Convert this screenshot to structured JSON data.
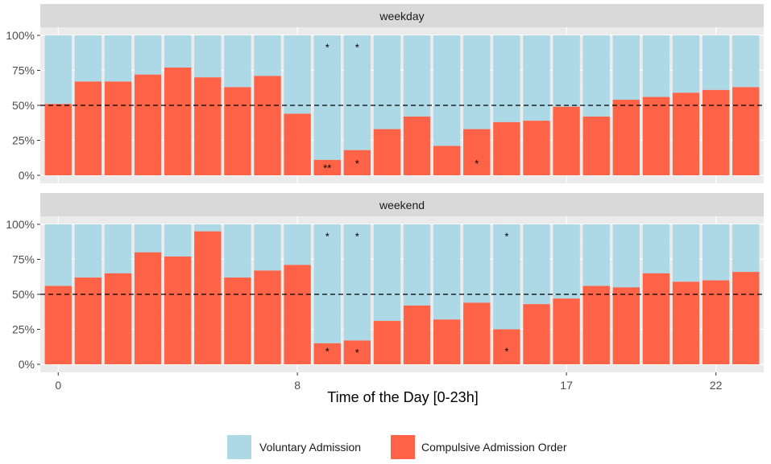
{
  "chart_data": {
    "type": "bar",
    "stacked": true,
    "xlabel": "Time of the Day [0-23h]",
    "x_ticks": [
      0,
      8,
      17,
      22
    ],
    "y_ticks": [
      "0%",
      "25%",
      "50%",
      "75%",
      "100%"
    ],
    "ylim": [
      0,
      100
    ],
    "reference_line": 50,
    "hours": [
      0,
      1,
      2,
      3,
      4,
      5,
      6,
      7,
      8,
      9,
      10,
      11,
      12,
      13,
      14,
      15,
      16,
      17,
      18,
      19,
      20,
      21,
      22,
      23
    ],
    "legend": [
      {
        "name": "Voluntary Admission",
        "color": "#ADD8E6"
      },
      {
        "name": "Compulsive Admission Order",
        "color": "#FF6347"
      }
    ],
    "panels": [
      {
        "label": "weekday",
        "compulsive": [
          51,
          67,
          67,
          72,
          77,
          70,
          63,
          71,
          44,
          11,
          18,
          33,
          42,
          21,
          33,
          38,
          39,
          49,
          42,
          54,
          56,
          59,
          61,
          63
        ],
        "markers": [
          {
            "hour": 9,
            "value": 91,
            "text": "*"
          },
          {
            "hour": 10,
            "value": 91,
            "text": "*"
          },
          {
            "hour": 9,
            "value": 5,
            "text": "**"
          },
          {
            "hour": 10,
            "value": 8,
            "text": "*"
          },
          {
            "hour": 14,
            "value": 8,
            "text": "*"
          }
        ]
      },
      {
        "label": "weekend",
        "compulsive": [
          56,
          62,
          65,
          80,
          77,
          95,
          62,
          67,
          71,
          15,
          17,
          31,
          42,
          32,
          44,
          25,
          43,
          47,
          56,
          55,
          65,
          59,
          60,
          66
        ],
        "markers": [
          {
            "hour": 9,
            "value": 91,
            "text": "*"
          },
          {
            "hour": 10,
            "value": 91,
            "text": "*"
          },
          {
            "hour": 15,
            "value": 91,
            "text": "*"
          },
          {
            "hour": 9,
            "value": 9,
            "text": "*"
          },
          {
            "hour": 10,
            "value": 8,
            "text": "*"
          },
          {
            "hour": 15,
            "value": 9,
            "text": "*"
          }
        ]
      }
    ]
  }
}
